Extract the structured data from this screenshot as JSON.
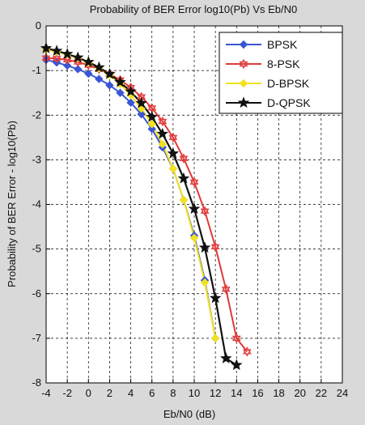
{
  "chart_data": {
    "type": "line",
    "title": "Probability of BER Error log10(Pb) Vs Eb/N0",
    "xlabel": "Eb/N0 (dB)",
    "ylabel": "Probability of BER Error - log10(Pb)",
    "xlim": [
      -4,
      24
    ],
    "ylim": [
      -8,
      0
    ],
    "x_ticks": [
      "-4",
      "-2",
      "0",
      "2",
      "4",
      "6",
      "8",
      "10",
      "12",
      "14",
      "16",
      "18",
      "20",
      "22",
      "24"
    ],
    "y_ticks": [
      "0",
      "-1",
      "-2",
      "-3",
      "-4",
      "-5",
      "-6",
      "-7",
      "-8"
    ],
    "grid": "dashed",
    "legend_position": "top-right",
    "series": [
      {
        "name": "BPSK",
        "color": "#3a56d4",
        "marker": "diamond",
        "x": [
          -4,
          -3,
          -2,
          -1,
          0,
          1,
          2,
          3,
          4,
          5,
          6,
          7,
          8,
          9,
          10,
          11,
          12
        ],
        "y": [
          -0.76,
          -0.82,
          -0.89,
          -0.97,
          -1.07,
          -1.19,
          -1.33,
          -1.5,
          -1.72,
          -1.98,
          -2.31,
          -2.72,
          -3.2,
          -3.9,
          -4.7,
          -5.7,
          -7.0
        ]
      },
      {
        "name": "8-PSK",
        "color": "#e03a3a",
        "marker": "hexagram",
        "x": [
          -4,
          -3,
          -2,
          -1,
          0,
          1,
          2,
          3,
          4,
          5,
          6,
          7,
          8,
          9,
          10,
          11,
          12,
          13,
          14,
          15
        ],
        "y": [
          -0.72,
          -0.73,
          -0.76,
          -0.81,
          -0.88,
          -0.97,
          -1.08,
          -1.21,
          -1.38,
          -1.59,
          -1.84,
          -2.14,
          -2.5,
          -2.97,
          -3.5,
          -4.15,
          -4.95,
          -5.9,
          -7.0,
          -7.3
        ]
      },
      {
        "name": "D-BPSK",
        "color": "#f2e21e",
        "marker": "diamond",
        "x": [
          -4,
          -3,
          -2,
          -1,
          0,
          1,
          2,
          3,
          4,
          5,
          6,
          7,
          8,
          9,
          10,
          11,
          12
        ],
        "y": [
          -0.53,
          -0.58,
          -0.64,
          -0.72,
          -0.82,
          -0.95,
          -1.1,
          -1.3,
          -1.55,
          -1.85,
          -2.2,
          -2.65,
          -3.2,
          -3.9,
          -4.75,
          -5.75,
          -7.0
        ]
      },
      {
        "name": "D-QPSK",
        "color": "#111111",
        "marker": "pentagram",
        "x": [
          -4,
          -3,
          -2,
          -1,
          0,
          1,
          2,
          3,
          4,
          5,
          6,
          7,
          8,
          9,
          10,
          11,
          12,
          13,
          14
        ],
        "y": [
          -0.5,
          -0.56,
          -0.63,
          -0.71,
          -0.81,
          -0.93,
          -1.08,
          -1.26,
          -1.47,
          -1.73,
          -2.04,
          -2.42,
          -2.86,
          -3.42,
          -4.1,
          -4.97,
          -6.1,
          -7.45,
          -7.6
        ]
      }
    ]
  }
}
